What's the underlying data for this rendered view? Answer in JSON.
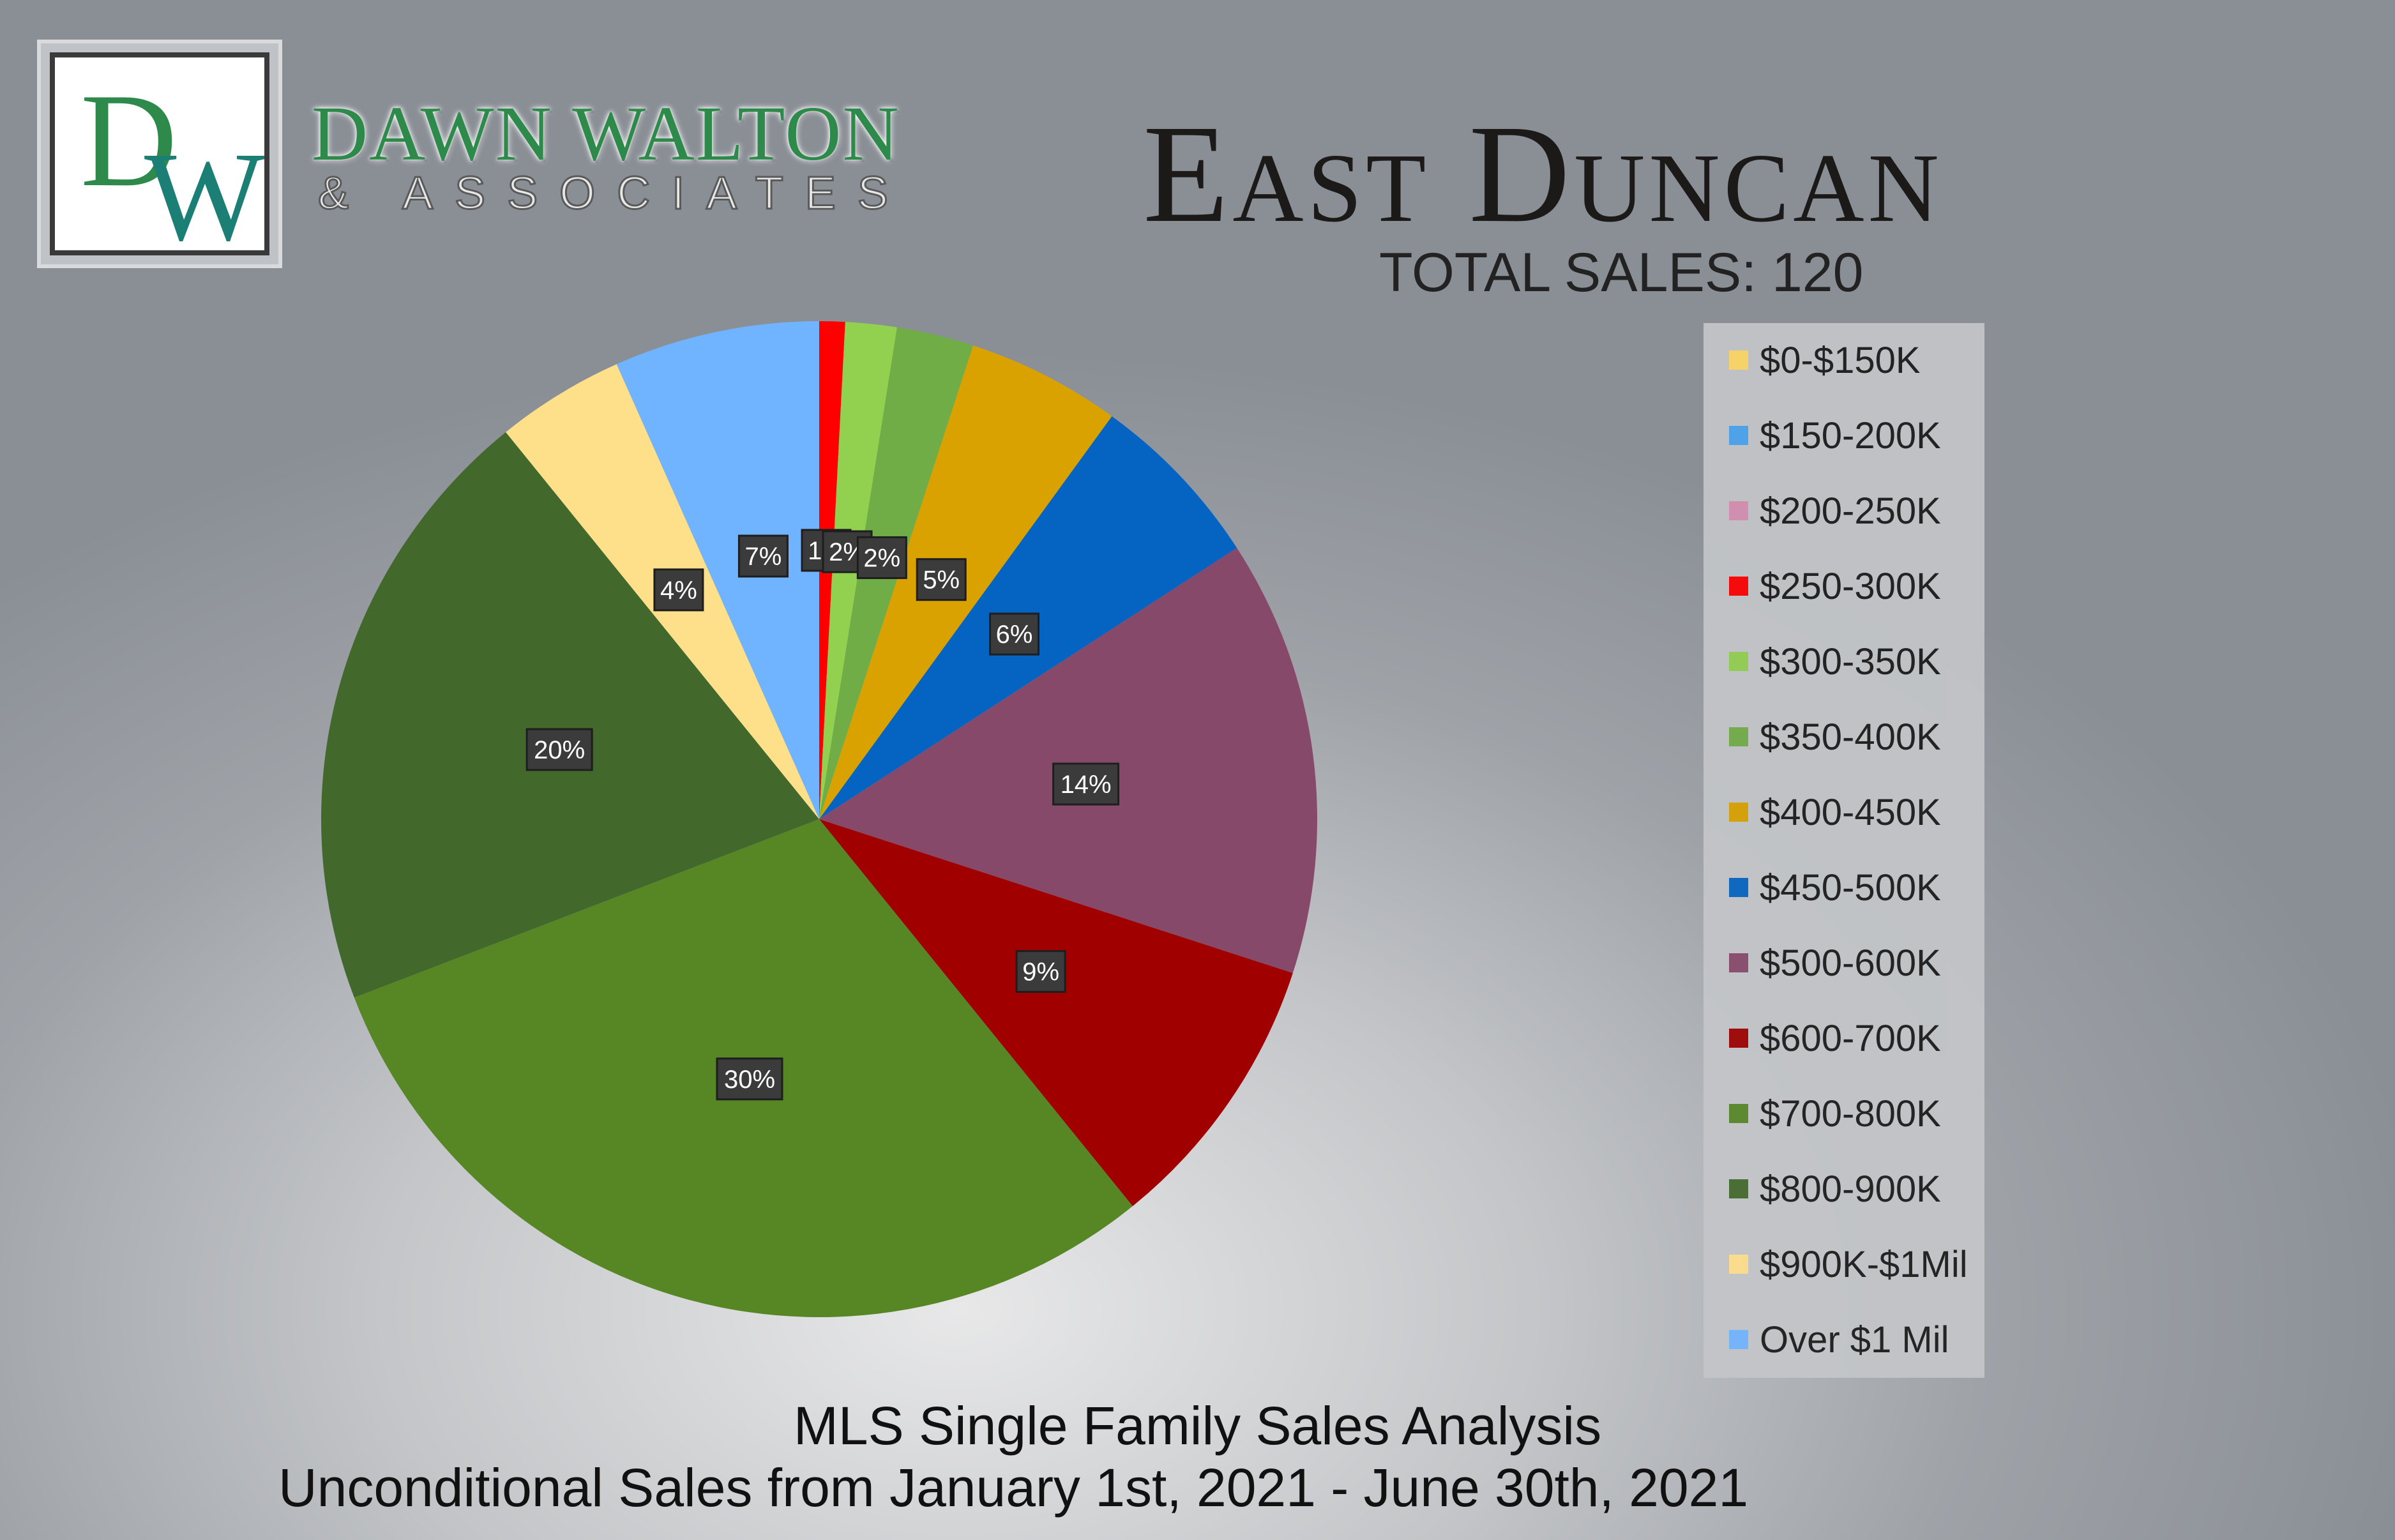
{
  "brand": {
    "monogram": "DW",
    "name": "DAWN WALTON",
    "sub": "& ASSOCIATES"
  },
  "header": {
    "title": "East Duncan",
    "subtitle": "TOTAL SALES: 120"
  },
  "footer": {
    "line1": "MLS Single Family Sales Analysis",
    "line2": "Unconditional Sales from January 1st, 2021 - June 30th, 2021"
  },
  "colors": {
    "label_bg": "#3b3b3b",
    "label_text": "#ffffff",
    "legend_bg": "#c4c6c9"
  },
  "chart_data": {
    "type": "pie",
    "title": "East Duncan",
    "legend_position": "right",
    "categories": [
      "$0-$150K",
      "$150-200K",
      "$200-250K",
      "$250-300K",
      "$300-350K",
      "$350-400K",
      "$400-450K",
      "$450-500K",
      "$500-600K",
      "$600-700K",
      "$700-800K",
      "$800-900K",
      "$900K-$1Mil",
      "Over $1 Mil"
    ],
    "values": [
      0,
      0,
      0,
      1,
      2,
      3,
      6,
      7,
      17,
      11,
      36,
      24,
      5,
      8
    ],
    "labels": [
      "",
      "",
      "",
      "1%",
      "2%",
      "2%",
      "5%",
      "6%",
      "14%",
      "9%",
      "30%",
      "20%",
      "4%",
      "7%"
    ],
    "colors": [
      "#ffd966",
      "#4aa3f0",
      "#d68fb0",
      "#ff0000",
      "#92d050",
      "#70ad47",
      "#d9a200",
      "#0563c1",
      "#87496a",
      "#a00000",
      "#578625",
      "#43682b",
      "#ffe08a",
      "#70b4ff"
    ]
  }
}
